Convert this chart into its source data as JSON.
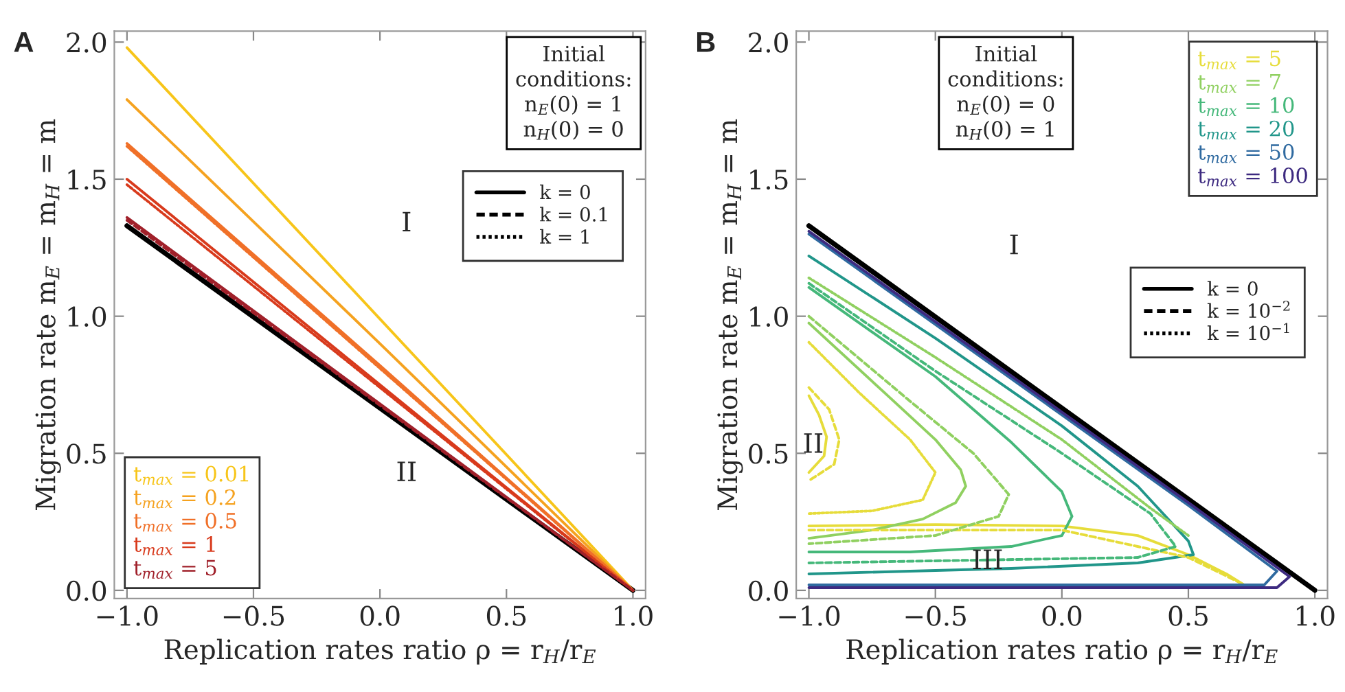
{
  "chart_data": [
    {
      "type": "line",
      "title": "A",
      "xlabel": "Replication rates ratio ρ = r$_{H}$/r$_{E}$",
      "ylabel": "Migration rate m$_{E}$ = m$_{H}$ = m",
      "xlim": [
        -1.05,
        1.05
      ],
      "ylim": [
        -0.03,
        2.04
      ],
      "xticks": [
        {
          "value": -1.0,
          "label": "−1.0"
        },
        {
          "value": -0.5,
          "label": "−0.5"
        },
        {
          "value": 0.0,
          "label": "0.0"
        },
        {
          "value": 0.5,
          "label": "0.5"
        },
        {
          "value": 1.0,
          "label": "1.0"
        }
      ],
      "yticks": [
        {
          "value": 0.0,
          "label": "0.0"
        },
        {
          "value": 0.5,
          "label": "0.5"
        },
        {
          "value": 1.0,
          "label": "1.0"
        },
        {
          "value": 1.5,
          "label": "1.5"
        },
        {
          "value": 2.0,
          "label": "2.0"
        }
      ],
      "grid": false,
      "legend": "bottom left",
      "annotations": [
        "Initial\nconditions:\nn$_{E}$(0) = 1\nn$_{H}$(0) = 0",
        "k = 0",
        "k = 0.1",
        "k = 1",
        "I",
        "II"
      ],
      "series": [
        {
          "name": "t$_{max}$ = 0.01",
          "color": "#f7c51a",
          "line_style": "solid",
          "x": [
            -1,
            0,
            1
          ],
          "values": [
            1.98,
            0.99,
            0
          ]
        },
        {
          "name": "t$_{max}$ = 0.2",
          "color": "#f5a21f",
          "line_style": "solid",
          "x": [
            -1,
            0,
            1
          ],
          "values": [
            1.79,
            0.9,
            0
          ]
        },
        {
          "name": "t$_{max}$ = 0.5",
          "color": "#f07028",
          "line_style": "solid",
          "x": [
            -1,
            0,
            1
          ],
          "values": [
            1.63,
            0.82,
            0
          ]
        },
        {
          "name": "t$_{max}$ = 1",
          "color": "#d83a1c",
          "line_style": "solid",
          "x": [
            -1,
            0,
            1
          ],
          "values": [
            1.5,
            0.75,
            0
          ]
        },
        {
          "name": "t$_{max}$ = 5",
          "color": "#a0202a",
          "line_style": "solid",
          "x": [
            -1,
            0,
            1
          ],
          "values": [
            1.36,
            0.68,
            0
          ]
        },
        {
          "color": "#f07028",
          "line_style": "dotted",
          "x": [
            -1,
            0,
            1
          ],
          "values": [
            1.62,
            0.81,
            0
          ]
        },
        {
          "color": "#d83a1c",
          "line_style": "dotted",
          "x": [
            -1,
            0,
            1
          ],
          "values": [
            1.48,
            0.74,
            0
          ]
        },
        {
          "color": "#a0202a",
          "line_style": "dashed",
          "x": [
            -1,
            0,
            1
          ],
          "values": [
            1.35,
            0.675,
            0
          ]
        },
        {
          "color": "#000000",
          "line_style": "solid",
          "x": [
            -1,
            0,
            1
          ],
          "values": [
            1.33,
            0.665,
            0
          ]
        }
      ]
    },
    {
      "type": "line",
      "title": "B",
      "xlabel": "Replication rates ratio ρ = r$_{H}$/r$_{E}$",
      "ylabel": "Migration rate m$_{E}$ = m$_{H}$ = m",
      "xlim": [
        -1.05,
        1.05
      ],
      "ylim": [
        -0.03,
        2.04
      ],
      "xticks": [
        {
          "value": -1.0,
          "label": "−1.0"
        },
        {
          "value": -0.5,
          "label": "−0.5"
        },
        {
          "value": 0.0,
          "label": "0.0"
        },
        {
          "value": 0.5,
          "label": "0.5"
        },
        {
          "value": 1.0,
          "label": "1.0"
        }
      ],
      "yticks": [
        {
          "value": 0.0,
          "label": "0.0"
        },
        {
          "value": 0.5,
          "label": "0.5"
        },
        {
          "value": 1.0,
          "label": "1.0"
        },
        {
          "value": 1.5,
          "label": "1.5"
        },
        {
          "value": 2.0,
          "label": "2.0"
        }
      ],
      "grid": false,
      "legend": "top right",
      "annotations": [
        "Initial\nconditions:\nn$_{E}$(0) = 0\nn$_{H}$(0) = 1",
        "k = 0",
        "k = 10$^{−2}$",
        "k = 10$^{−1}$",
        "I",
        "II",
        "III"
      ],
      "series": [
        {
          "name": "t$_{max}$ = 5",
          "color": "#e6dc3a",
          "line_style": "solid",
          "x": [
            -1,
            -0.96,
            -0.93,
            -0.94,
            -1
          ],
          "values": [
            0.71,
            0.64,
            0.56,
            0.49,
            0.43
          ]
        },
        {
          "color": "#e6dc3a",
          "line_style": "solid",
          "x": [
            -1,
            -0.5,
            0,
            0.3,
            0.5,
            0.65,
            0.72
          ],
          "values": [
            0.235,
            0.24,
            0.235,
            0.2,
            0.13,
            0.06,
            0.02
          ]
        },
        {
          "name": "t$_{max}$ = 7",
          "color": "#90d060",
          "line_style": "solid",
          "x": [
            -1,
            -0.7,
            -0.5,
            -0.4,
            -0.38,
            -0.42,
            -0.55,
            -0.75,
            -1
          ],
          "values": [
            0.975,
            0.72,
            0.55,
            0.44,
            0.38,
            0.32,
            0.26,
            0.22,
            0.19
          ]
        },
        {
          "name": "t$_{max}$ = 10",
          "color": "#45b87a",
          "line_style": "solid",
          "x": [
            -1,
            -0.5,
            -0.2,
            0,
            0.04,
            0,
            -0.2,
            -0.6,
            -1
          ],
          "values": [
            1.105,
            0.78,
            0.54,
            0.36,
            0.27,
            0.2,
            0.16,
            0.14,
            0.14
          ]
        },
        {
          "name": "t$_{max}$ = 20",
          "color": "#21968a",
          "line_style": "solid",
          "x": [
            -1,
            -0.5,
            0,
            0.3,
            0.5,
            0.52,
            0.3,
            -0.2,
            -1
          ],
          "values": [
            1.22,
            0.92,
            0.6,
            0.38,
            0.18,
            0.13,
            0.1,
            0.08,
            0.06
          ]
        },
        {
          "name": "t$_{max}$ = 50",
          "color": "#2f6aa0",
          "line_style": "solid",
          "x": [
            -1,
            0,
            0.5,
            0.85,
            0.8,
            0,
            -1
          ],
          "values": [
            1.3,
            0.64,
            0.31,
            0.07,
            0.02,
            0.02,
            0.02
          ]
        },
        {
          "name": "t$_{max}$ = 100",
          "color": "#3d2a80",
          "line_style": "solid",
          "x": [
            -1,
            0,
            0.5,
            0.9,
            0.85,
            0,
            -1
          ],
          "values": [
            1.31,
            0.65,
            0.32,
            0.05,
            0.01,
            0.01,
            0.01
          ]
        },
        {
          "color": "#e6dc3a",
          "line_style": "dashed",
          "x": [
            -1,
            -0.92,
            -0.88,
            -0.9,
            -1
          ],
          "values": [
            0.74,
            0.66,
            0.55,
            0.46,
            0.4
          ]
        },
        {
          "color": "#e6dc3a",
          "line_style": "dashed",
          "x": [
            -1,
            0,
            0.5,
            0.7
          ],
          "values": [
            0.22,
            0.22,
            0.12,
            0.03
          ]
        },
        {
          "color": "#90d060",
          "line_style": "dashed",
          "x": [
            -1,
            -0.6,
            -0.35,
            -0.21,
            -0.25,
            -0.5,
            -1
          ],
          "values": [
            1.0,
            0.69,
            0.5,
            0.35,
            0.27,
            0.2,
            0.17
          ]
        },
        {
          "color": "#45b87a",
          "line_style": "dashed",
          "x": [
            -1,
            -0.5,
            0,
            0.35,
            0.45,
            0.3,
            -1
          ],
          "values": [
            1.12,
            0.8,
            0.5,
            0.28,
            0.16,
            0.12,
            0.1
          ]
        },
        {
          "color": "#e6dc3a",
          "line_style": "dotted",
          "x": [
            -1,
            -0.8,
            -0.6,
            -0.5,
            -0.55,
            -0.75,
            -1
          ],
          "values": [
            0.905,
            0.72,
            0.55,
            0.43,
            0.33,
            0.29,
            0.28
          ]
        },
        {
          "color": "#90d060",
          "line_style": "dotted",
          "x": [
            -1,
            -0.5,
            0,
            0.35,
            0.5
          ],
          "values": [
            1.14,
            0.85,
            0.55,
            0.3,
            0.2
          ]
        },
        {
          "color": "#000000",
          "line_style": "solid",
          "x": [
            -1,
            0,
            1
          ],
          "values": [
            1.33,
            0.665,
            0
          ]
        }
      ]
    }
  ]
}
